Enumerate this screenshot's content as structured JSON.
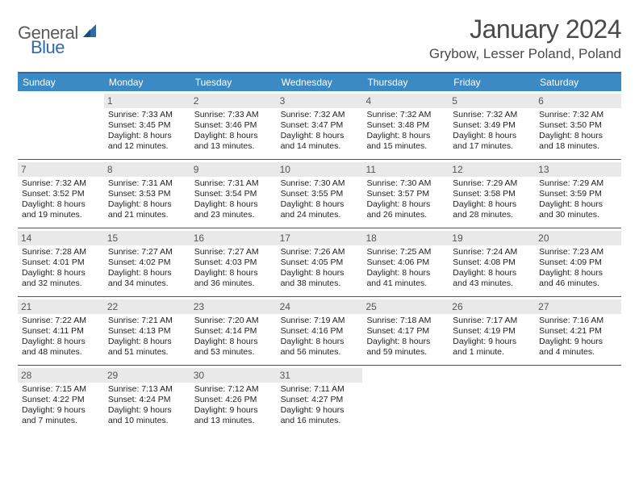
{
  "logo": {
    "text_gray": "General",
    "text_blue": "Blue"
  },
  "title": "January 2024",
  "location": "Grybow, Lesser Poland, Poland",
  "colors": {
    "header_bar": "#3b8ac4",
    "header_border": "#2f6aa8",
    "daynum_bg": "#e9e9e9",
    "week_border": "#555555",
    "text": "#000000",
    "title_text": "#4a4a4a"
  },
  "weekdays": [
    "Sunday",
    "Monday",
    "Tuesday",
    "Wednesday",
    "Thursday",
    "Friday",
    "Saturday"
  ],
  "weeks": [
    [
      {
        "num": "",
        "lines": []
      },
      {
        "num": "1",
        "lines": [
          "Sunrise: 7:33 AM",
          "Sunset: 3:45 PM",
          "Daylight: 8 hours",
          "and 12 minutes."
        ]
      },
      {
        "num": "2",
        "lines": [
          "Sunrise: 7:33 AM",
          "Sunset: 3:46 PM",
          "Daylight: 8 hours",
          "and 13 minutes."
        ]
      },
      {
        "num": "3",
        "lines": [
          "Sunrise: 7:32 AM",
          "Sunset: 3:47 PM",
          "Daylight: 8 hours",
          "and 14 minutes."
        ]
      },
      {
        "num": "4",
        "lines": [
          "Sunrise: 7:32 AM",
          "Sunset: 3:48 PM",
          "Daylight: 8 hours",
          "and 15 minutes."
        ]
      },
      {
        "num": "5",
        "lines": [
          "Sunrise: 7:32 AM",
          "Sunset: 3:49 PM",
          "Daylight: 8 hours",
          "and 17 minutes."
        ]
      },
      {
        "num": "6",
        "lines": [
          "Sunrise: 7:32 AM",
          "Sunset: 3:50 PM",
          "Daylight: 8 hours",
          "and 18 minutes."
        ]
      }
    ],
    [
      {
        "num": "7",
        "lines": [
          "Sunrise: 7:32 AM",
          "Sunset: 3:52 PM",
          "Daylight: 8 hours",
          "and 19 minutes."
        ]
      },
      {
        "num": "8",
        "lines": [
          "Sunrise: 7:31 AM",
          "Sunset: 3:53 PM",
          "Daylight: 8 hours",
          "and 21 minutes."
        ]
      },
      {
        "num": "9",
        "lines": [
          "Sunrise: 7:31 AM",
          "Sunset: 3:54 PM",
          "Daylight: 8 hours",
          "and 23 minutes."
        ]
      },
      {
        "num": "10",
        "lines": [
          "Sunrise: 7:30 AM",
          "Sunset: 3:55 PM",
          "Daylight: 8 hours",
          "and 24 minutes."
        ]
      },
      {
        "num": "11",
        "lines": [
          "Sunrise: 7:30 AM",
          "Sunset: 3:57 PM",
          "Daylight: 8 hours",
          "and 26 minutes."
        ]
      },
      {
        "num": "12",
        "lines": [
          "Sunrise: 7:29 AM",
          "Sunset: 3:58 PM",
          "Daylight: 8 hours",
          "and 28 minutes."
        ]
      },
      {
        "num": "13",
        "lines": [
          "Sunrise: 7:29 AM",
          "Sunset: 3:59 PM",
          "Daylight: 8 hours",
          "and 30 minutes."
        ]
      }
    ],
    [
      {
        "num": "14",
        "lines": [
          "Sunrise: 7:28 AM",
          "Sunset: 4:01 PM",
          "Daylight: 8 hours",
          "and 32 minutes."
        ]
      },
      {
        "num": "15",
        "lines": [
          "Sunrise: 7:27 AM",
          "Sunset: 4:02 PM",
          "Daylight: 8 hours",
          "and 34 minutes."
        ]
      },
      {
        "num": "16",
        "lines": [
          "Sunrise: 7:27 AM",
          "Sunset: 4:03 PM",
          "Daylight: 8 hours",
          "and 36 minutes."
        ]
      },
      {
        "num": "17",
        "lines": [
          "Sunrise: 7:26 AM",
          "Sunset: 4:05 PM",
          "Daylight: 8 hours",
          "and 38 minutes."
        ]
      },
      {
        "num": "18",
        "lines": [
          "Sunrise: 7:25 AM",
          "Sunset: 4:06 PM",
          "Daylight: 8 hours",
          "and 41 minutes."
        ]
      },
      {
        "num": "19",
        "lines": [
          "Sunrise: 7:24 AM",
          "Sunset: 4:08 PM",
          "Daylight: 8 hours",
          "and 43 minutes."
        ]
      },
      {
        "num": "20",
        "lines": [
          "Sunrise: 7:23 AM",
          "Sunset: 4:09 PM",
          "Daylight: 8 hours",
          "and 46 minutes."
        ]
      }
    ],
    [
      {
        "num": "21",
        "lines": [
          "Sunrise: 7:22 AM",
          "Sunset: 4:11 PM",
          "Daylight: 8 hours",
          "and 48 minutes."
        ]
      },
      {
        "num": "22",
        "lines": [
          "Sunrise: 7:21 AM",
          "Sunset: 4:13 PM",
          "Daylight: 8 hours",
          "and 51 minutes."
        ]
      },
      {
        "num": "23",
        "lines": [
          "Sunrise: 7:20 AM",
          "Sunset: 4:14 PM",
          "Daylight: 8 hours",
          "and 53 minutes."
        ]
      },
      {
        "num": "24",
        "lines": [
          "Sunrise: 7:19 AM",
          "Sunset: 4:16 PM",
          "Daylight: 8 hours",
          "and 56 minutes."
        ]
      },
      {
        "num": "25",
        "lines": [
          "Sunrise: 7:18 AM",
          "Sunset: 4:17 PM",
          "Daylight: 8 hours",
          "and 59 minutes."
        ]
      },
      {
        "num": "26",
        "lines": [
          "Sunrise: 7:17 AM",
          "Sunset: 4:19 PM",
          "Daylight: 9 hours",
          "and 1 minute."
        ]
      },
      {
        "num": "27",
        "lines": [
          "Sunrise: 7:16 AM",
          "Sunset: 4:21 PM",
          "Daylight: 9 hours",
          "and 4 minutes."
        ]
      }
    ],
    [
      {
        "num": "28",
        "lines": [
          "Sunrise: 7:15 AM",
          "Sunset: 4:22 PM",
          "Daylight: 9 hours",
          "and 7 minutes."
        ]
      },
      {
        "num": "29",
        "lines": [
          "Sunrise: 7:13 AM",
          "Sunset: 4:24 PM",
          "Daylight: 9 hours",
          "and 10 minutes."
        ]
      },
      {
        "num": "30",
        "lines": [
          "Sunrise: 7:12 AM",
          "Sunset: 4:26 PM",
          "Daylight: 9 hours",
          "and 13 minutes."
        ]
      },
      {
        "num": "31",
        "lines": [
          "Sunrise: 7:11 AM",
          "Sunset: 4:27 PM",
          "Daylight: 9 hours",
          "and 16 minutes."
        ]
      },
      {
        "num": "",
        "lines": []
      },
      {
        "num": "",
        "lines": []
      },
      {
        "num": "",
        "lines": []
      }
    ]
  ]
}
